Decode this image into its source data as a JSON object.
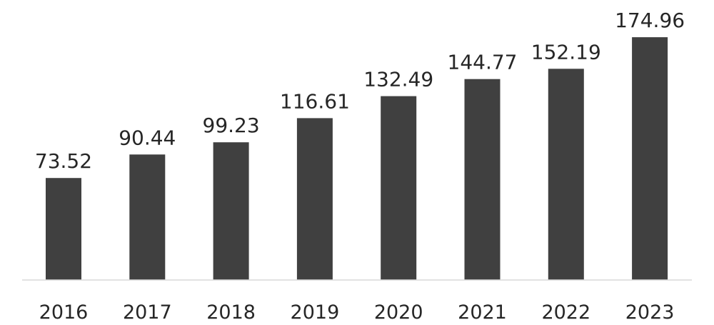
{
  "chart_data": {
    "type": "bar",
    "categories": [
      "2016",
      "2017",
      "2018",
      "2019",
      "2020",
      "2021",
      "2022",
      "2023"
    ],
    "values": [
      73.52,
      90.44,
      99.23,
      116.61,
      132.49,
      144.77,
      152.19,
      174.96
    ],
    "value_labels": [
      "73.52",
      "90.44",
      "99.23",
      "116.61",
      "132.49",
      "144.77",
      "152.19",
      "174.96"
    ],
    "ylim": [
      0,
      175
    ],
    "grid": false,
    "legend": "none",
    "bar_color": "#404040"
  }
}
